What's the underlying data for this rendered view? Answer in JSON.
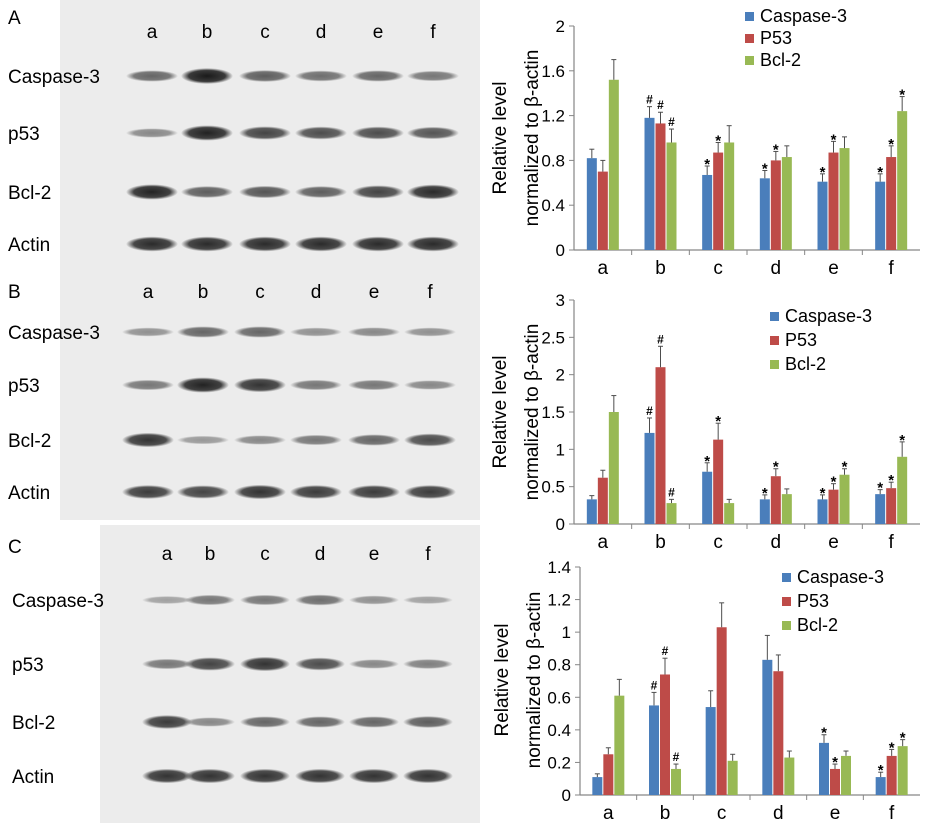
{
  "colors": {
    "caspase3": "#4a7ebb",
    "p53": "#be4b48",
    "bcl2": "#98b954",
    "error": "#4d4d4d",
    "axis": "#868686",
    "blot_bg": "#ececec",
    "band": "#1a1a1a"
  },
  "panels": [
    {
      "letter": "A",
      "lanes": [
        "a",
        "b",
        "c",
        "d",
        "e",
        "f"
      ],
      "blot": {
        "rows": [
          {
            "label": "Caspase-3",
            "intensity": [
              0.55,
              1.0,
              0.6,
              0.5,
              0.55,
              0.45
            ]
          },
          {
            "label": "p53",
            "intensity": [
              0.35,
              0.95,
              0.75,
              0.7,
              0.7,
              0.65
            ]
          },
          {
            "label": "Bcl-2",
            "intensity": [
              0.95,
              0.6,
              0.65,
              0.6,
              0.75,
              0.9
            ]
          },
          {
            "label": "Actin",
            "intensity": [
              0.9,
              0.9,
              0.9,
              0.9,
              0.9,
              0.9
            ]
          }
        ]
      },
      "chart_data": {
        "type": "bar",
        "categories": [
          "a",
          "b",
          "c",
          "d",
          "e",
          "f"
        ],
        "series": [
          {
            "name": "Caspase-3",
            "values": [
              0.82,
              1.18,
              0.67,
              0.64,
              0.61,
              0.61
            ],
            "errors": [
              0.08,
              0.1,
              0.08,
              0.07,
              0.07,
              0.07
            ]
          },
          {
            "name": "P53",
            "values": [
              0.7,
              1.13,
              0.87,
              0.8,
              0.87,
              0.83
            ],
            "errors": [
              0.1,
              0.1,
              0.09,
              0.08,
              0.1,
              0.1
            ]
          },
          {
            "name": "Bcl-2",
            "values": [
              1.52,
              0.96,
              0.96,
              0.83,
              0.91,
              1.24
            ],
            "errors": [
              0.18,
              0.12,
              0.15,
              0.1,
              0.1,
              0.13
            ]
          }
        ],
        "markers": [
          {
            "category": "b",
            "series": 0,
            "symbol": "#"
          },
          {
            "category": "b",
            "series": 1,
            "symbol": "#"
          },
          {
            "category": "b",
            "series": 2,
            "symbol": "#"
          },
          {
            "category": "c",
            "series": 0,
            "symbol": "*"
          },
          {
            "category": "c",
            "series": 1,
            "symbol": "*"
          },
          {
            "category": "d",
            "series": 0,
            "symbol": "*"
          },
          {
            "category": "d",
            "series": 1,
            "symbol": "*"
          },
          {
            "category": "e",
            "series": 0,
            "symbol": "*"
          },
          {
            "category": "e",
            "series": 1,
            "symbol": "*"
          },
          {
            "category": "f",
            "series": 0,
            "symbol": "*"
          },
          {
            "category": "f",
            "series": 1,
            "symbol": "*"
          },
          {
            "category": "f",
            "series": 2,
            "symbol": "*"
          }
        ],
        "ylabel_line1": "Relative level",
        "ylabel_line2": "normalized to β-actin",
        "ylim": [
          0,
          2
        ],
        "yticks": [
          "0",
          "0.4",
          "0.8",
          "1.2",
          "1.6",
          "2"
        ],
        "grid": false,
        "legend": "top-right"
      }
    },
    {
      "letter": "B",
      "lanes": [
        "a",
        "b",
        "c",
        "d",
        "e",
        "f"
      ],
      "blot": {
        "rows": [
          {
            "label": "Caspase-3",
            "intensity": [
              0.3,
              0.55,
              0.55,
              0.3,
              0.35,
              0.3
            ]
          },
          {
            "label": "p53",
            "intensity": [
              0.45,
              0.95,
              0.85,
              0.45,
              0.45,
              0.35
            ]
          },
          {
            "label": "Bcl-2",
            "intensity": [
              0.85,
              0.25,
              0.35,
              0.45,
              0.55,
              0.7
            ]
          },
          {
            "label": "Actin",
            "intensity": [
              0.8,
              0.75,
              0.85,
              0.8,
              0.8,
              0.8
            ]
          }
        ]
      },
      "chart_data": {
        "type": "bar",
        "categories": [
          "a",
          "b",
          "c",
          "d",
          "e",
          "f"
        ],
        "series": [
          {
            "name": "Caspase-3",
            "values": [
              0.33,
              1.22,
              0.7,
              0.33,
              0.33,
              0.4
            ],
            "errors": [
              0.05,
              0.2,
              0.12,
              0.06,
              0.06,
              0.06
            ]
          },
          {
            "name": "P53",
            "values": [
              0.62,
              2.1,
              1.13,
              0.64,
              0.46,
              0.48
            ],
            "errors": [
              0.1,
              0.28,
              0.22,
              0.1,
              0.08,
              0.08
            ]
          },
          {
            "name": "Bcl-2",
            "values": [
              1.5,
              0.28,
              0.28,
              0.4,
              0.66,
              0.9
            ],
            "errors": [
              0.22,
              0.05,
              0.05,
              0.07,
              0.08,
              0.2
            ]
          }
        ],
        "markers": [
          {
            "category": "b",
            "series": 0,
            "symbol": "#"
          },
          {
            "category": "b",
            "series": 1,
            "symbol": "#"
          },
          {
            "category": "b",
            "series": 2,
            "symbol": "#"
          },
          {
            "category": "c",
            "series": 0,
            "symbol": "*"
          },
          {
            "category": "c",
            "series": 1,
            "symbol": "*"
          },
          {
            "category": "d",
            "series": 0,
            "symbol": "*"
          },
          {
            "category": "d",
            "series": 1,
            "symbol": "*"
          },
          {
            "category": "e",
            "series": 0,
            "symbol": "*"
          },
          {
            "category": "e",
            "series": 1,
            "symbol": "*"
          },
          {
            "category": "e",
            "series": 2,
            "symbol": "*"
          },
          {
            "category": "f",
            "series": 0,
            "symbol": "*"
          },
          {
            "category": "f",
            "series": 1,
            "symbol": "*"
          },
          {
            "category": "f",
            "series": 2,
            "symbol": "*"
          }
        ],
        "ylabel_line1": "Relative level",
        "ylabel_line2": "normalized to β-actin",
        "ylim": [
          0,
          3
        ],
        "yticks": [
          "0",
          "0.5",
          "1",
          "1.5",
          "2",
          "2.5",
          "3"
        ],
        "grid": false,
        "legend": "top-right"
      }
    },
    {
      "letter": "C",
      "lanes": [
        "a",
        "b",
        "c",
        "d",
        "e",
        "f"
      ],
      "blot": {
        "rows": [
          {
            "label": "Caspase-3",
            "intensity": [
              0.2,
              0.45,
              0.45,
              0.5,
              0.3,
              0.2
            ]
          },
          {
            "label": "p53",
            "intensity": [
              0.45,
              0.75,
              0.85,
              0.7,
              0.35,
              0.4
            ]
          },
          {
            "label": "Bcl-2",
            "intensity": [
              0.8,
              0.35,
              0.55,
              0.55,
              0.55,
              0.6
            ]
          },
          {
            "label": "Actin",
            "intensity": [
              0.85,
              0.85,
              0.85,
              0.85,
              0.85,
              0.85
            ]
          }
        ]
      },
      "chart_data": {
        "type": "bar",
        "categories": [
          "a",
          "b",
          "c",
          "d",
          "e",
          "f"
        ],
        "series": [
          {
            "name": "Caspase-3",
            "values": [
              0.11,
              0.55,
              0.54,
              0.83,
              0.32,
              0.11
            ],
            "errors": [
              0.02,
              0.08,
              0.1,
              0.15,
              0.05,
              0.03
            ]
          },
          {
            "name": "P53",
            "values": [
              0.25,
              0.74,
              1.03,
              0.76,
              0.16,
              0.24
            ],
            "errors": [
              0.04,
              0.1,
              0.15,
              0.1,
              0.03,
              0.04
            ]
          },
          {
            "name": "Bcl-2",
            "values": [
              0.61,
              0.16,
              0.21,
              0.23,
              0.24,
              0.3
            ],
            "errors": [
              0.1,
              0.03,
              0.04,
              0.04,
              0.03,
              0.04
            ]
          }
        ],
        "markers": [
          {
            "category": "b",
            "series": 0,
            "symbol": "#"
          },
          {
            "category": "b",
            "series": 1,
            "symbol": "#"
          },
          {
            "category": "b",
            "series": 2,
            "symbol": "#"
          },
          {
            "category": "e",
            "series": 0,
            "symbol": "*"
          },
          {
            "category": "e",
            "series": 1,
            "symbol": "*"
          },
          {
            "category": "f",
            "series": 0,
            "symbol": "*"
          },
          {
            "category": "f",
            "series": 1,
            "symbol": "*"
          },
          {
            "category": "f",
            "series": 2,
            "symbol": "*"
          }
        ],
        "ylabel_line1": "Relative level",
        "ylabel_line2": "normalized to β-actin",
        "ylim": [
          0,
          1.4
        ],
        "yticks": [
          "0",
          "0.2",
          "0.4",
          "0.6",
          "0.8",
          "1",
          "1.2",
          "1.4"
        ],
        "grid": false,
        "legend": "top-right"
      }
    }
  ]
}
